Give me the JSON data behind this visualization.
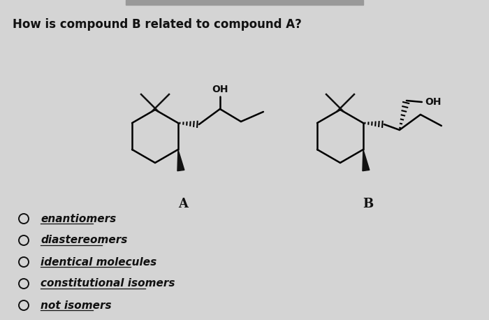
{
  "title": "How is compound B related to compound A?",
  "background_color": "#d4d4d4",
  "text_color": "#111111",
  "options": [
    "enantiomers",
    "diastereomers",
    "identical molecules",
    "constitutional isomers",
    "not isomers"
  ],
  "label_A": "A",
  "label_B": "B",
  "OH_label": "OH",
  "fig_width": 7.0,
  "fig_height": 4.58,
  "dpi": 100
}
